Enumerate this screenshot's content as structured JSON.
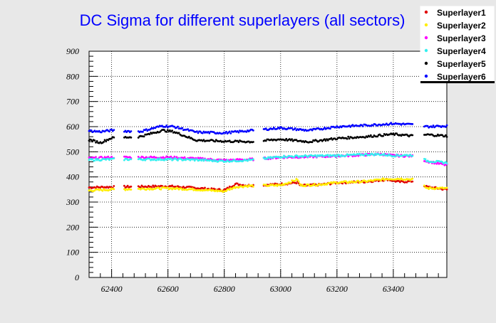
{
  "chart_data": {
    "type": "scatter",
    "title": "DC Sigma for different superlayers (all sectors)",
    "xlabel": "",
    "ylabel": "",
    "xlim": [
      62320,
      63590
    ],
    "ylim": [
      0,
      900
    ],
    "x_ticks": [
      62400,
      62600,
      62800,
      63000,
      63200,
      63400
    ],
    "x_tick_labels": [
      "62400",
      "62600",
      "62800",
      "63000",
      "63200",
      "63400"
    ],
    "y_ticks": [
      0,
      100,
      200,
      300,
      400,
      500,
      600,
      700,
      800,
      900
    ],
    "y_tick_labels": [
      "0",
      "100",
      "200",
      "300",
      "400",
      "500",
      "600",
      "700",
      "800",
      "900"
    ],
    "grid": true,
    "legend_position": "top-right",
    "x_segments": [
      [
        62320,
        62410
      ],
      [
        62445,
        62470
      ],
      [
        62495,
        62905
      ],
      [
        62940,
        63470
      ],
      [
        63510,
        63590
      ]
    ],
    "series": [
      {
        "name": "Superlayer1",
        "color": "#e00000",
        "profile": [
          [
            62320,
            358
          ],
          [
            62400,
            360
          ],
          [
            62600,
            363
          ],
          [
            62700,
            356
          ],
          [
            62800,
            347
          ],
          [
            62840,
            372
          ],
          [
            62880,
            366
          ],
          [
            63000,
            371
          ],
          [
            63060,
            378
          ],
          [
            63070,
            365
          ],
          [
            63140,
            369
          ],
          [
            63200,
            377
          ],
          [
            63300,
            381
          ],
          [
            63380,
            390
          ],
          [
            63420,
            380
          ],
          [
            63470,
            383
          ],
          [
            63520,
            360
          ],
          [
            63590,
            350
          ]
        ]
      },
      {
        "name": "Superlayer2",
        "color": "#ffee00",
        "profile": [
          [
            62320,
            346
          ],
          [
            62400,
            350
          ],
          [
            62600,
            355
          ],
          [
            62700,
            350
          ],
          [
            62800,
            343
          ],
          [
            62840,
            360
          ],
          [
            62880,
            364
          ],
          [
            63000,
            367
          ],
          [
            63060,
            390
          ],
          [
            63070,
            366
          ],
          [
            63140,
            370
          ],
          [
            63200,
            378
          ],
          [
            63300,
            382
          ],
          [
            63380,
            392
          ],
          [
            63420,
            393
          ],
          [
            63470,
            390
          ],
          [
            63520,
            355
          ],
          [
            63590,
            355
          ]
        ]
      },
      {
        "name": "Superlayer3",
        "color": "#ff00ff",
        "profile": [
          [
            62320,
            474
          ],
          [
            62400,
            478
          ],
          [
            62600,
            478
          ],
          [
            62700,
            473
          ],
          [
            62800,
            466
          ],
          [
            62900,
            470
          ],
          [
            63000,
            478
          ],
          [
            63100,
            480
          ],
          [
            63200,
            483
          ],
          [
            63300,
            488
          ],
          [
            63350,
            491
          ],
          [
            63400,
            485
          ],
          [
            63470,
            483
          ],
          [
            63520,
            462
          ],
          [
            63590,
            447
          ]
        ]
      },
      {
        "name": "Superlayer4",
        "color": "#33f0f0",
        "profile": [
          [
            62320,
            468
          ],
          [
            62400,
            470
          ],
          [
            62600,
            470
          ],
          [
            62700,
            468
          ],
          [
            62800,
            463
          ],
          [
            62900,
            467
          ],
          [
            63000,
            481
          ],
          [
            63100,
            483
          ],
          [
            63200,
            485
          ],
          [
            63300,
            489
          ],
          [
            63350,
            490
          ],
          [
            63400,
            485
          ],
          [
            63470,
            487
          ],
          [
            63520,
            464
          ],
          [
            63590,
            456
          ]
        ]
      },
      {
        "name": "Superlayer5",
        "color": "#000000",
        "profile": [
          [
            62320,
            548
          ],
          [
            62360,
            536
          ],
          [
            62400,
            555
          ],
          [
            62500,
            560
          ],
          [
            62580,
            585
          ],
          [
            62620,
            580
          ],
          [
            62700,
            546
          ],
          [
            62800,
            542
          ],
          [
            62900,
            540
          ],
          [
            63000,
            550
          ],
          [
            63100,
            540
          ],
          [
            63200,
            553
          ],
          [
            63300,
            560
          ],
          [
            63400,
            570
          ],
          [
            63470,
            563
          ],
          [
            63520,
            568
          ],
          [
            63590,
            563
          ]
        ]
      },
      {
        "name": "Superlayer6",
        "color": "#0000ff",
        "profile": [
          [
            62320,
            583
          ],
          [
            62360,
            580
          ],
          [
            62400,
            585
          ],
          [
            62500,
            580
          ],
          [
            62580,
            603
          ],
          [
            62620,
            600
          ],
          [
            62700,
            578
          ],
          [
            62800,
            575
          ],
          [
            62900,
            585
          ],
          [
            63000,
            595
          ],
          [
            63100,
            585
          ],
          [
            63200,
            600
          ],
          [
            63300,
            605
          ],
          [
            63400,
            612
          ],
          [
            63470,
            608
          ],
          [
            63520,
            600
          ],
          [
            63590,
            603
          ]
        ]
      }
    ]
  }
}
